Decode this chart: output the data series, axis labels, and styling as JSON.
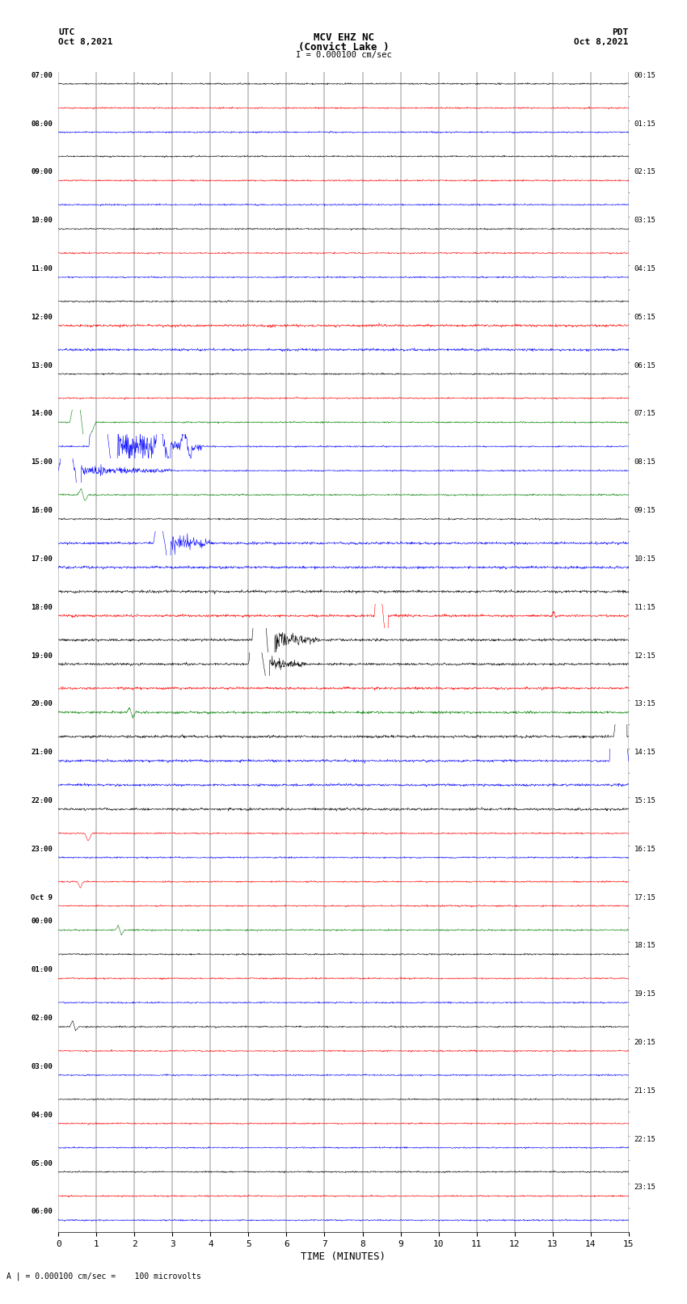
{
  "title_line1": "MCV EHZ NC",
  "title_line2": "(Convict Lake )",
  "title_line3": "I = 0.000100 cm/sec",
  "left_label_top": "UTC",
  "left_label_date": "Oct 8,2021",
  "right_label_top": "PDT",
  "right_label_date": "Oct 8,2021",
  "bottom_label": "TIME (MINUTES)",
  "bottom_note": "A | = 0.000100 cm/sec =    100 microvolts",
  "utc_times": [
    "07:00",
    "",
    "08:00",
    "",
    "09:00",
    "",
    "10:00",
    "",
    "11:00",
    "",
    "12:00",
    "",
    "13:00",
    "",
    "14:00",
    "",
    "15:00",
    "",
    "16:00",
    "",
    "17:00",
    "",
    "18:00",
    "",
    "19:00",
    "",
    "20:00",
    "",
    "21:00",
    "",
    "22:00",
    "",
    "23:00",
    "",
    "Oct 9",
    "00:00",
    "",
    "01:00",
    "",
    "02:00",
    "",
    "03:00",
    "",
    "04:00",
    "",
    "05:00",
    "",
    "06:00",
    ""
  ],
  "pdt_times": [
    "00:15",
    "",
    "01:15",
    "",
    "02:15",
    "",
    "03:15",
    "",
    "04:15",
    "",
    "05:15",
    "",
    "06:15",
    "",
    "07:15",
    "",
    "08:15",
    "",
    "09:15",
    "",
    "10:15",
    "",
    "11:15",
    "",
    "12:15",
    "",
    "13:15",
    "",
    "14:15",
    "",
    "15:15",
    "",
    "16:15",
    "",
    "17:15",
    "",
    "18:15",
    "",
    "19:15",
    "",
    "20:15",
    "",
    "21:15",
    "",
    "22:15",
    "",
    "23:15",
    ""
  ],
  "n_rows": 48,
  "x_ticks": [
    0,
    1,
    2,
    3,
    4,
    5,
    6,
    7,
    8,
    9,
    10,
    11,
    12,
    13,
    14,
    15
  ],
  "noise_level": 0.03
}
